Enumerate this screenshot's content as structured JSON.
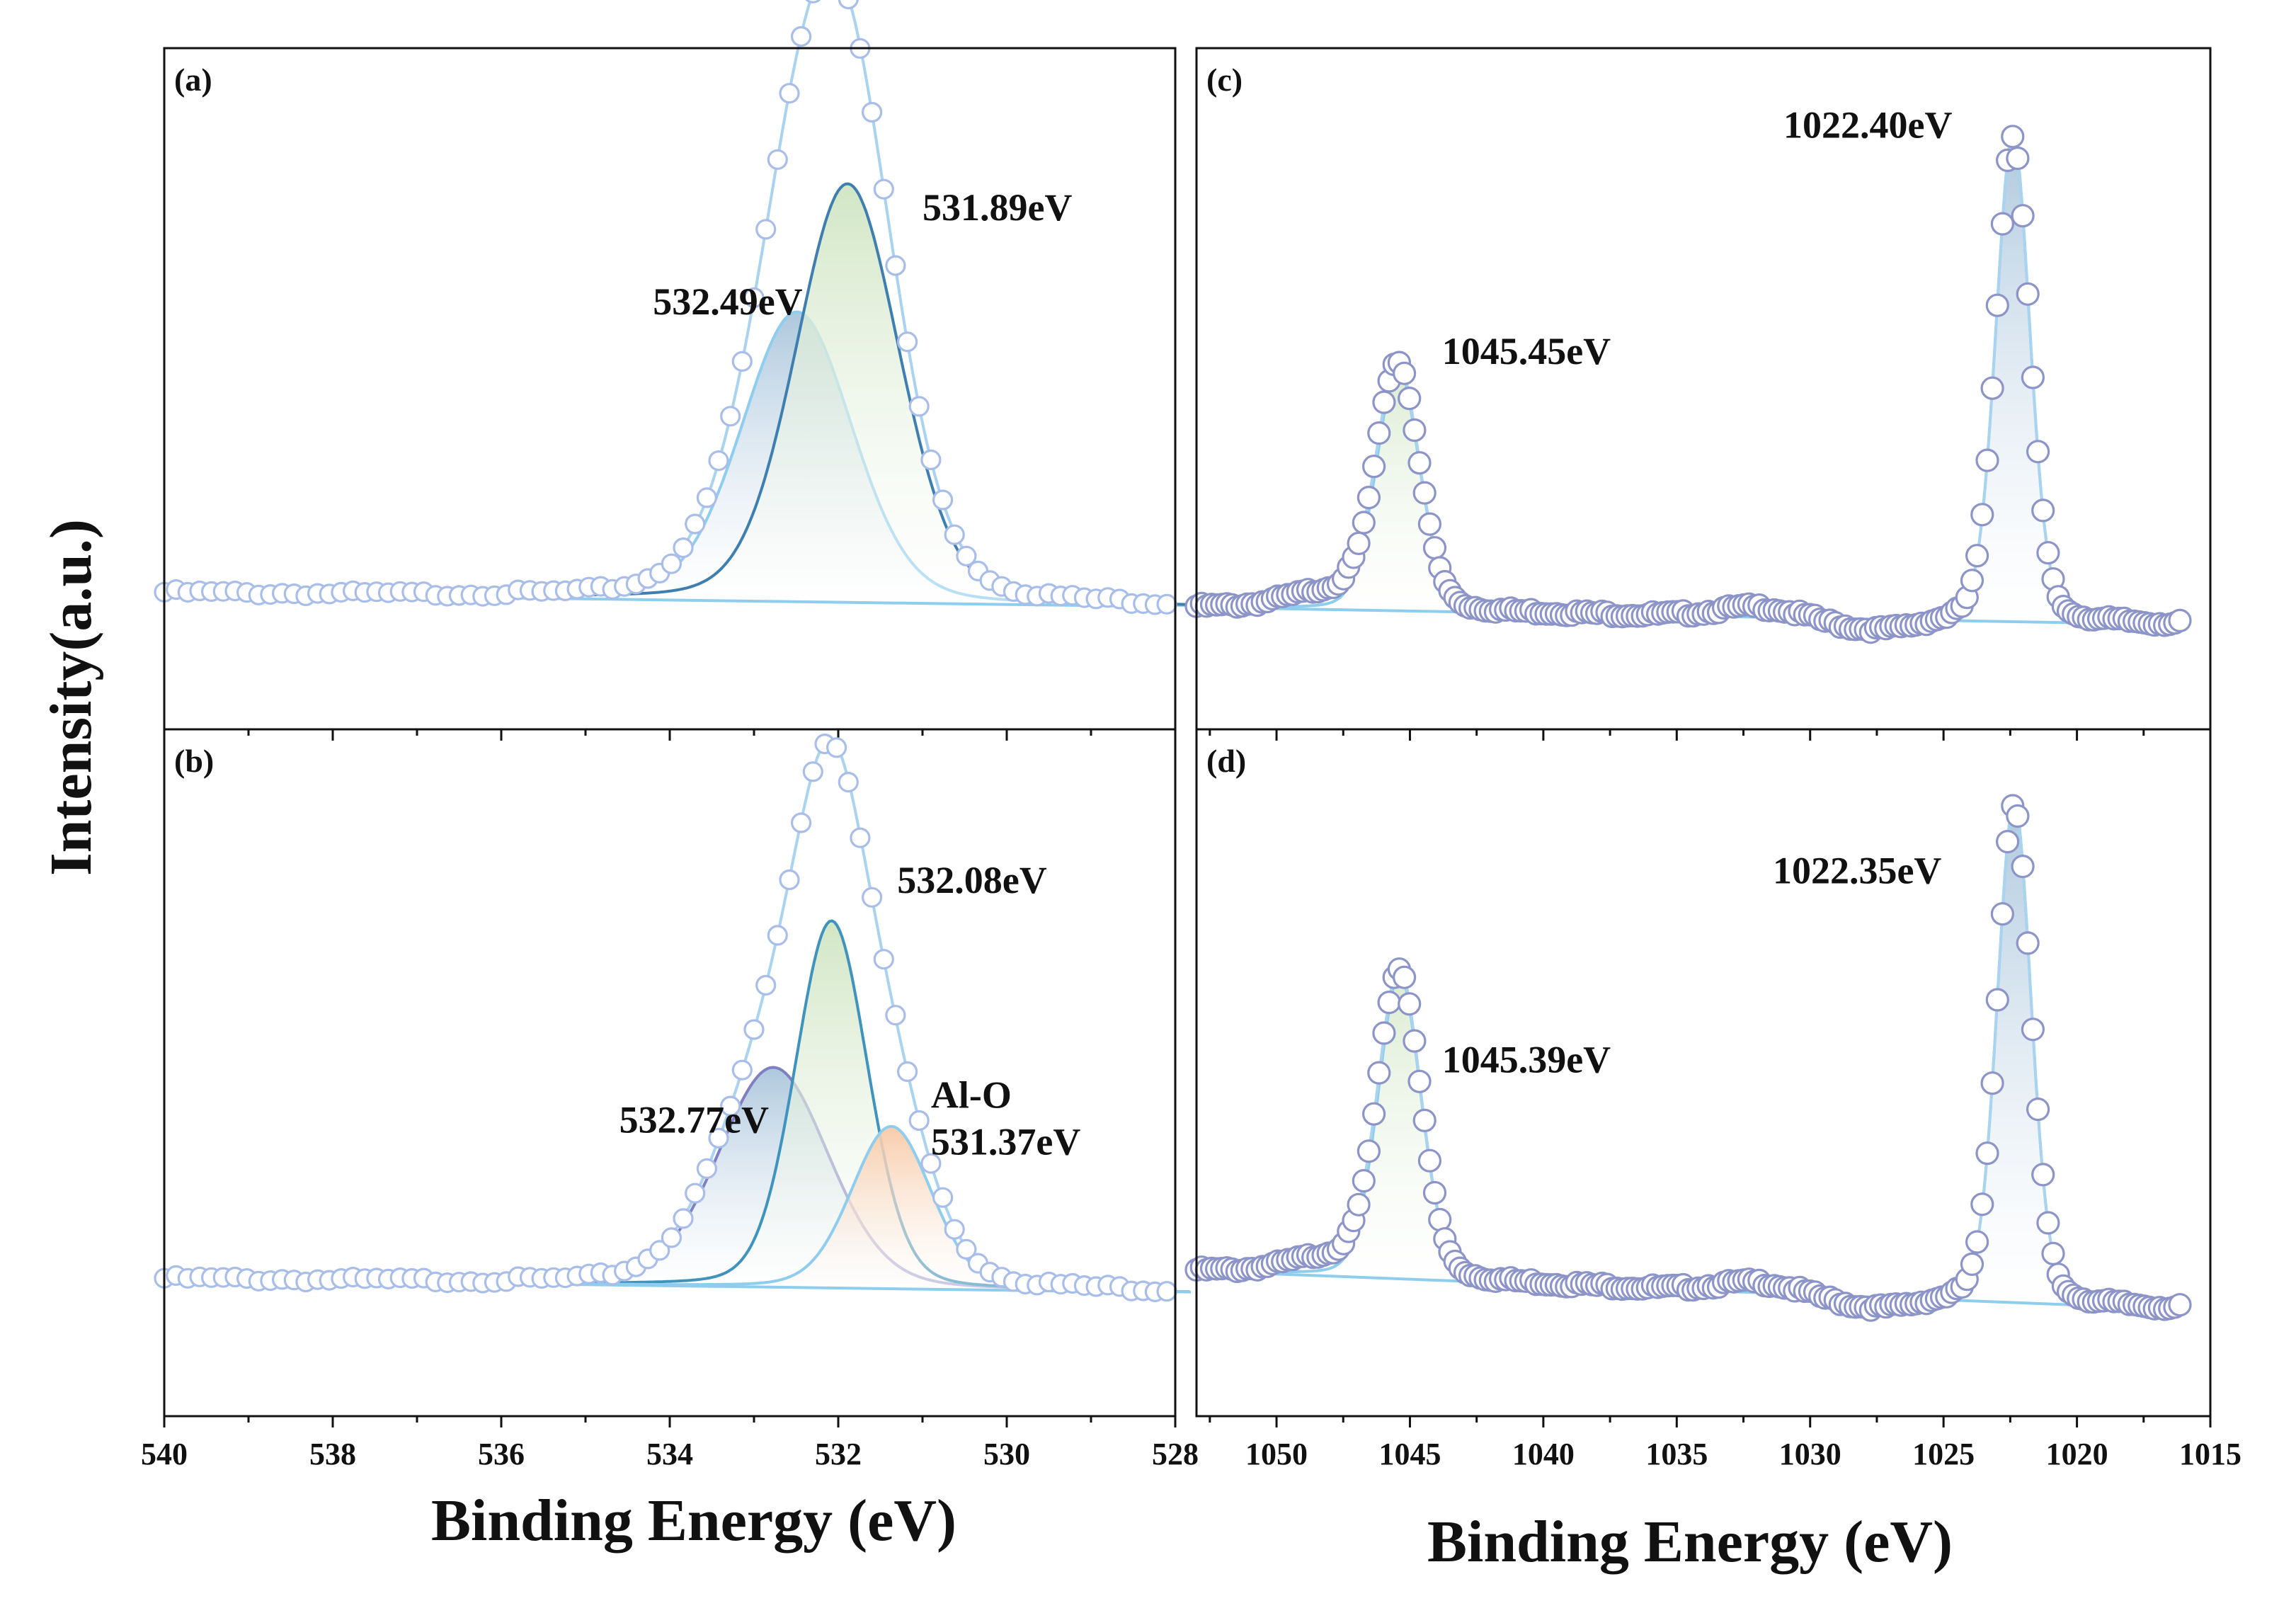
{
  "figure": {
    "y_axis_label": "Intensity(a.u.)",
    "left_x_axis_label": "Binding Energy (eV)",
    "right_x_axis_label": "Binding Energy (eV)"
  },
  "colors": {
    "axes": "#111111",
    "marker_edge_o1s": "#a9bde9",
    "marker_edge_al2p": "#8c94c8",
    "envelope": "#a9d3ee",
    "baseline": "#8fcdee",
    "component_blue": "#4f87b3",
    "component_blue_fill": "#a9c5dc",
    "component_green": "#3f93bc",
    "component_green_fill": "#cfe5c2",
    "component_orange": "#f0a77a",
    "component_orange_fill": "#f7c9a6",
    "component_light": "#8fcdee"
  },
  "chart_data": [
    {
      "id": "a",
      "panel_label": "(a)",
      "type": "scatter",
      "xlabel": "Binding Energy (eV)",
      "ylabel": "Intensity(a.u.)",
      "xlim": [
        540,
        528
      ],
      "ylim": [
        0,
        1.1
      ],
      "x_tick_labels": [
        "540",
        "538",
        "536",
        "534",
        "532",
        "530",
        "528"
      ],
      "x_ticks": [
        540,
        538,
        536,
        534,
        532,
        530,
        528
      ],
      "x_minor_step": 1,
      "background": {
        "left": 0.082,
        "right": 0.055
      },
      "envelope": {
        "start": 540,
        "end": 528,
        "step": 0.14,
        "offset": 0.0
      },
      "components": [
        {
          "name": "532.49eV",
          "center": 532.49,
          "amplitude": 0.585,
          "fwhm": 1.55,
          "stroke": "#8fcdee",
          "fill": "#a9c5dc"
        },
        {
          "name": "531.89eV",
          "center": 531.89,
          "amplitude": 0.845,
          "fwhm": 1.45,
          "stroke": "#3f7fb0",
          "fill": "#cfe5c2"
        }
      ],
      "annotations": [
        {
          "lines": [
            "531.89eV"
          ],
          "x": 531.0,
          "y": 0.835,
          "anchor": "start"
        },
        {
          "lines": [
            "532.49eV"
          ],
          "x": 534.2,
          "y": 0.645,
          "anchor": "start"
        }
      ]
    },
    {
      "id": "b",
      "panel_label": "(b)",
      "type": "scatter",
      "xlabel": "Binding Energy (eV)",
      "ylabel": "Intensity(a.u.)",
      "xlim": [
        540,
        528
      ],
      "ylim": [
        0,
        1.1
      ],
      "x_tick_labels": [
        "540",
        "538",
        "536",
        "534",
        "532",
        "530",
        "528"
      ],
      "x_ticks": [
        540,
        538,
        536,
        534,
        532,
        530,
        528
      ],
      "x_minor_step": 1,
      "background": {
        "left": 0.082,
        "right": 0.055
      },
      "envelope": {
        "start": 540,
        "end": 528,
        "step": 0.14,
        "offset": 0.0
      },
      "components": [
        {
          "name": "532.77eV",
          "center": 532.77,
          "amplitude": 0.44,
          "fwhm": 1.55,
          "stroke": "#7f7fc2",
          "fill": "#a9c5dc"
        },
        {
          "name": "532.08eV",
          "center": 532.08,
          "amplitude": 0.735,
          "fwhm": 1.02,
          "stroke": "#3f93bc",
          "fill": "#cfe5c2"
        },
        {
          "name": "531.37eV",
          "center": 531.37,
          "amplitude": 0.325,
          "fwhm": 1.12,
          "stroke": "#8fcdee",
          "fill": "#f7c9a6"
        }
      ],
      "annotations": [
        {
          "lines": [
            "532.08eV"
          ],
          "x": 531.3,
          "y": 0.855,
          "anchor": "start"
        },
        {
          "lines": [
            "532.77eV"
          ],
          "x": 534.6,
          "y": 0.375,
          "anchor": "start"
        },
        {
          "lines": [
            "Al-O",
            "531.37eV"
          ],
          "x": 530.9,
          "y": 0.425,
          "anchor": "start"
        }
      ]
    },
    {
      "id": "c",
      "panel_label": "(c)",
      "type": "scatter",
      "xlabel": "Binding Energy (eV)",
      "ylabel": "Intensity(a.u.)",
      "xlim": [
        1053,
        1015
      ],
      "ylim": [
        0,
        1.12
      ],
      "x_tick_labels": [
        "1050",
        "1045",
        "1040",
        "1035",
        "1030",
        "1025",
        "1020",
        "1015"
      ],
      "x_ticks": [
        1050,
        1045,
        1040,
        1035,
        1030,
        1025,
        1020,
        1015
      ],
      "x_minor_step": 2.5,
      "background": {
        "left": 0.055,
        "right": 0.018
      },
      "envelope": {
        "start": 1053,
        "end": 1016,
        "step": 0.19,
        "offset": 0.0
      },
      "components": [
        {
          "name": "1045.45eV",
          "center": 1045.45,
          "amplitude": 0.5,
          "fwhm": 1.9,
          "stroke": "#8fcdee",
          "fill": "#d9ebcf"
        },
        {
          "name": "1022.40eV",
          "center": 1022.4,
          "amplitude": 1.0,
          "fwhm": 1.5,
          "stroke": "#8fcdee",
          "fill": "#a9c5dc"
        }
      ],
      "annotations": [
        {
          "lines": [
            "1022.40eV"
          ],
          "x": 1031.0,
          "y": 1.02,
          "anchor": "start"
        },
        {
          "lines": [
            "1045.45eV"
          ],
          "x": 1043.8,
          "y": 0.555,
          "anchor": "start"
        }
      ]
    },
    {
      "id": "d",
      "panel_label": "(d)",
      "type": "scatter",
      "xlabel": "Binding Energy (eV)",
      "ylabel": "Intensity(a.u.)",
      "xlim": [
        1053,
        1015
      ],
      "ylim": [
        0,
        1.12
      ],
      "x_tick_labels": [
        "1050",
        "1045",
        "1040",
        "1035",
        "1030",
        "1025",
        "1020",
        "1015"
      ],
      "x_ticks": [
        1050,
        1045,
        1040,
        1035,
        1030,
        1025,
        1020,
        1015
      ],
      "x_minor_step": 2.5,
      "background": {
        "left": 0.1,
        "right": 0.02
      },
      "envelope": {
        "start": 1053,
        "end": 1016,
        "step": 0.19,
        "offset": 0.0
      },
      "components": [
        {
          "name": "1045.39eV",
          "center": 1045.39,
          "amplitude": 0.62,
          "fwhm": 1.9,
          "stroke": "#8fcdee",
          "fill": "#d9ebcf"
        },
        {
          "name": "1022.35eV",
          "center": 1022.35,
          "amplitude": 1.02,
          "fwhm": 1.5,
          "stroke": "#8fcdee",
          "fill": "#a9c5dc"
        }
      ],
      "annotations": [
        {
          "lines": [
            "1022.35eV"
          ],
          "x": 1031.4,
          "y": 0.89,
          "anchor": "start"
        },
        {
          "lines": [
            "1045.39eV"
          ],
          "x": 1043.8,
          "y": 0.505,
          "anchor": "start"
        }
      ]
    }
  ]
}
